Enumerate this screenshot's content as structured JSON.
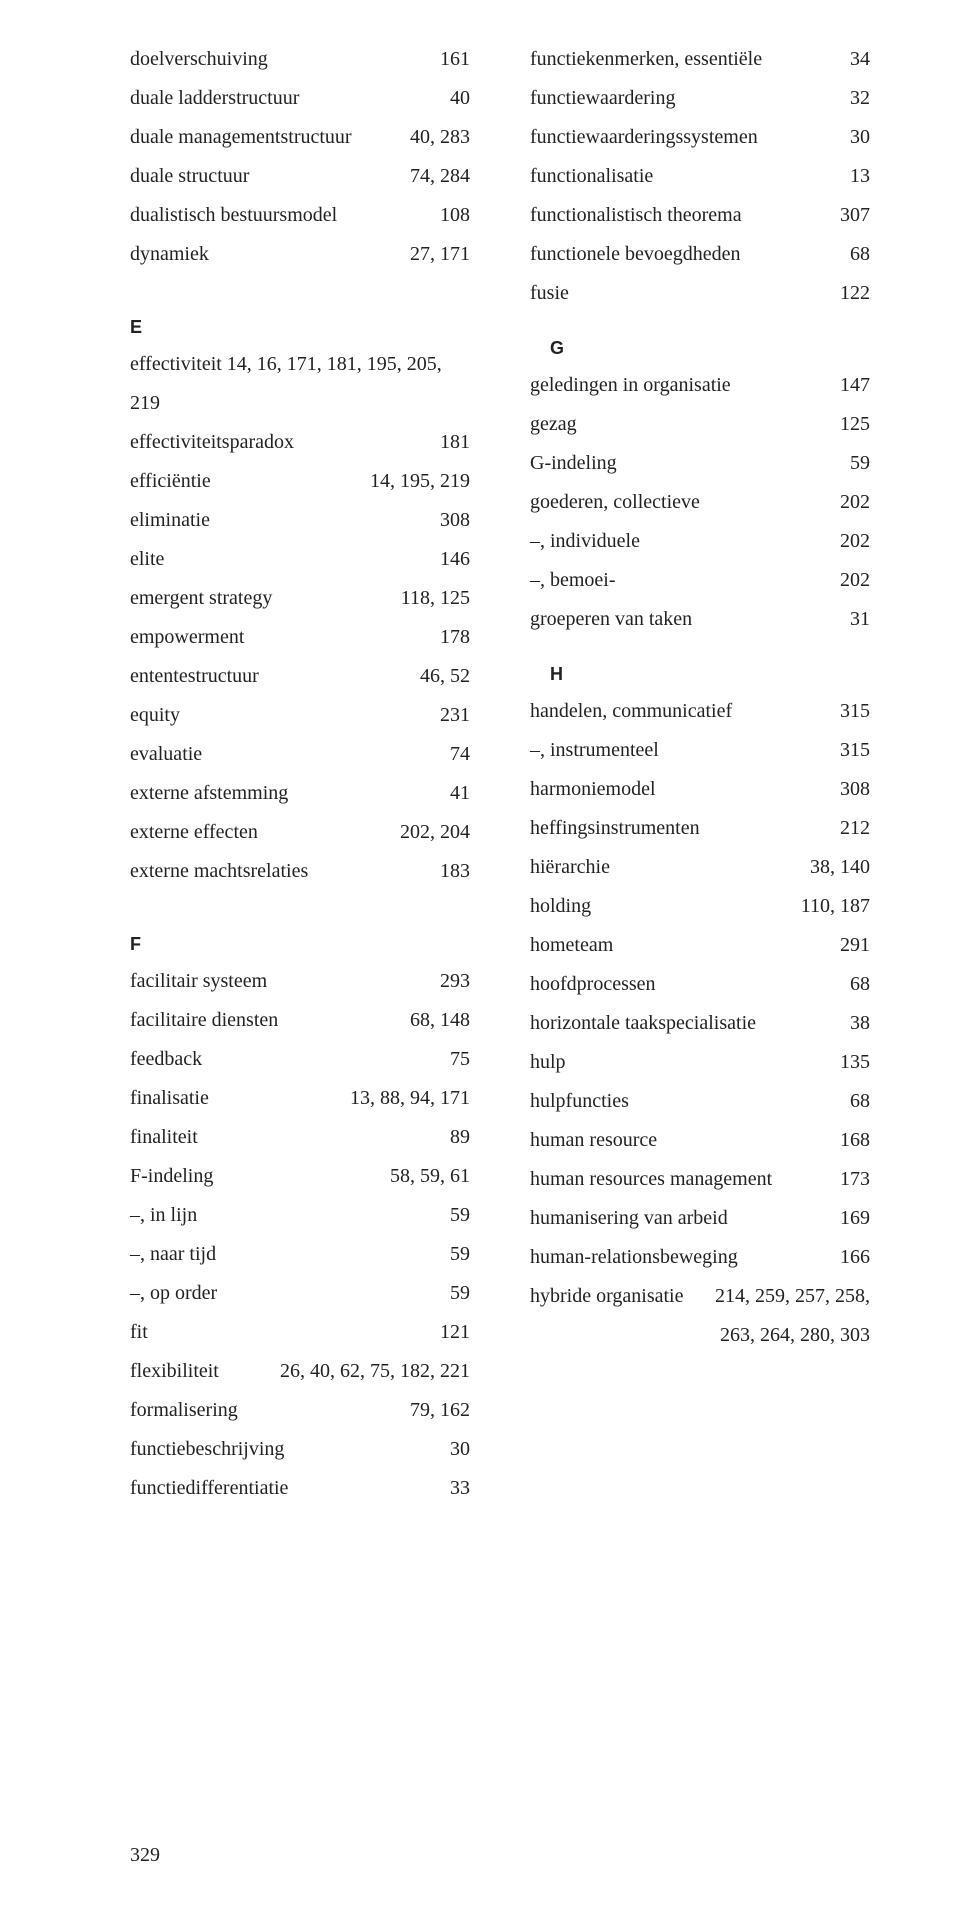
{
  "page_number": "329",
  "style": {
    "font_family": "Georgia, serif",
    "body_fontsize_pt": 15,
    "letter_font_family": "Verdana, sans-serif",
    "letter_fontweight": "bold",
    "text_color": "#222222",
    "background_color": "#ffffff",
    "line_height": 1.95
  },
  "left_column": [
    {
      "type": "entry",
      "term": "doelverschuiving",
      "pages": "161"
    },
    {
      "type": "entry",
      "term": "duale ladderstructuur",
      "pages": "40"
    },
    {
      "type": "entry",
      "term": "duale managementstructuur",
      "pages": "40, 283"
    },
    {
      "type": "entry",
      "term": "duale structuur",
      "pages": "74, 284"
    },
    {
      "type": "entry",
      "term": "dualistisch bestuursmodel",
      "pages": "108"
    },
    {
      "type": "entry",
      "term": "dynamiek",
      "pages": "27, 171"
    },
    {
      "type": "gap"
    },
    {
      "type": "letter",
      "label": "E"
    },
    {
      "type": "entry",
      "term": "effectiviteit  14, 16, 171, 181, 195, 205, 219",
      "pages": ""
    },
    {
      "type": "entry",
      "term": "effectiviteitsparadox",
      "pages": "181"
    },
    {
      "type": "entry",
      "term": "efficiëntie",
      "pages": "14, 195, 219"
    },
    {
      "type": "entry",
      "term": "eliminatie",
      "pages": "308"
    },
    {
      "type": "entry",
      "term": "elite",
      "pages": "146"
    },
    {
      "type": "entry",
      "term": "emergent strategy",
      "pages": "118, 125"
    },
    {
      "type": "entry",
      "term": "empowerment",
      "pages": "178"
    },
    {
      "type": "entry",
      "term": "ententestructuur",
      "pages": "46, 52"
    },
    {
      "type": "entry",
      "term": "equity",
      "pages": "231"
    },
    {
      "type": "entry",
      "term": "evaluatie",
      "pages": "74"
    },
    {
      "type": "entry",
      "term": "externe afstemming",
      "pages": "41"
    },
    {
      "type": "entry",
      "term": "externe effecten",
      "pages": "202, 204"
    },
    {
      "type": "entry",
      "term": "externe machtsrelaties",
      "pages": "183"
    },
    {
      "type": "gap"
    },
    {
      "type": "letter",
      "label": "F"
    },
    {
      "type": "entry",
      "term": "facilitair systeem",
      "pages": "293"
    },
    {
      "type": "entry",
      "term": "facilitaire diensten",
      "pages": "68, 148"
    },
    {
      "type": "entry",
      "term": "feedback",
      "pages": "75"
    },
    {
      "type": "entry",
      "term": "finalisatie",
      "pages": "13, 88, 94, 171"
    },
    {
      "type": "entry",
      "term": "finaliteit",
      "pages": "89"
    },
    {
      "type": "entry",
      "term": "F-indeling",
      "pages": "58, 59, 61"
    },
    {
      "type": "entry",
      "term": "–, in lijn",
      "pages": "59"
    },
    {
      "type": "entry",
      "term": "–, naar tijd",
      "pages": "59"
    },
    {
      "type": "entry",
      "term": "–, op order",
      "pages": "59"
    },
    {
      "type": "entry",
      "term": "fit",
      "pages": "121"
    },
    {
      "type": "entry",
      "term": "flexibiliteit",
      "pages": "26, 40, 62, 75, 182, 221"
    },
    {
      "type": "entry",
      "term": "formalisering",
      "pages": "79, 162"
    },
    {
      "type": "entry",
      "term": "functiebeschrijving",
      "pages": "30"
    },
    {
      "type": "entry",
      "term": "functiedifferentiatie",
      "pages": "33"
    }
  ],
  "right_column": [
    {
      "type": "entry",
      "term": "functiekenmerken, essentiële",
      "pages": "34"
    },
    {
      "type": "entry",
      "term": "functiewaardering",
      "pages": "32"
    },
    {
      "type": "entry",
      "term": "functiewaarderingssystemen",
      "pages": "30"
    },
    {
      "type": "entry",
      "term": "functionalisatie",
      "pages": "13"
    },
    {
      "type": "entry",
      "term": "functionalistisch theorema",
      "pages": "307"
    },
    {
      "type": "entry",
      "term": "functionele bevoegdheden",
      "pages": "68"
    },
    {
      "type": "entry",
      "term": "fusie",
      "pages": "122"
    },
    {
      "type": "gap"
    },
    {
      "type": "letter-inline",
      "label": "G"
    },
    {
      "type": "entry",
      "term": "geledingen in organisatie",
      "pages": "147"
    },
    {
      "type": "entry",
      "term": "gezag",
      "pages": "125"
    },
    {
      "type": "entry",
      "term": "G-indeling",
      "pages": "59"
    },
    {
      "type": "entry",
      "term": "goederen, collectieve",
      "pages": "202"
    },
    {
      "type": "entry",
      "term": "–, individuele",
      "pages": "202"
    },
    {
      "type": "entry",
      "term": "–, bemoei-",
      "pages": "202"
    },
    {
      "type": "entry",
      "term": "groeperen van taken",
      "pages": "31"
    },
    {
      "type": "gap"
    },
    {
      "type": "letter-inline",
      "label": "H"
    },
    {
      "type": "entry",
      "term": "handelen, communicatief",
      "pages": "315"
    },
    {
      "type": "entry",
      "term": "–, instrumenteel",
      "pages": "315"
    },
    {
      "type": "entry",
      "term": "harmoniemodel",
      "pages": "308"
    },
    {
      "type": "entry",
      "term": "heffingsinstrumenten",
      "pages": "212"
    },
    {
      "type": "entry",
      "term": "hiërarchie",
      "pages": "38, 140"
    },
    {
      "type": "entry",
      "term": "holding",
      "pages": "110, 187"
    },
    {
      "type": "entry",
      "term": "hometeam",
      "pages": "291"
    },
    {
      "type": "entry",
      "term": "hoofdprocessen",
      "pages": "68"
    },
    {
      "type": "entry",
      "term": "horizontale taakspecialisatie",
      "pages": "38"
    },
    {
      "type": "entry",
      "term": "hulp",
      "pages": "135"
    },
    {
      "type": "entry",
      "term": "hulpfuncties",
      "pages": "68"
    },
    {
      "type": "entry",
      "term": "human resource",
      "pages": "168"
    },
    {
      "type": "entry",
      "term": "human resources management",
      "pages": "173"
    },
    {
      "type": "entry",
      "term": "humanisering van arbeid",
      "pages": "169"
    },
    {
      "type": "entry",
      "term": "human-relationsbeweging",
      "pages": "166"
    },
    {
      "type": "entry",
      "term": "hybride organisatie",
      "pages": "214, 259, 257, 258,"
    },
    {
      "type": "hang",
      "term": "",
      "pages": "263, 264, 280, 303"
    }
  ]
}
